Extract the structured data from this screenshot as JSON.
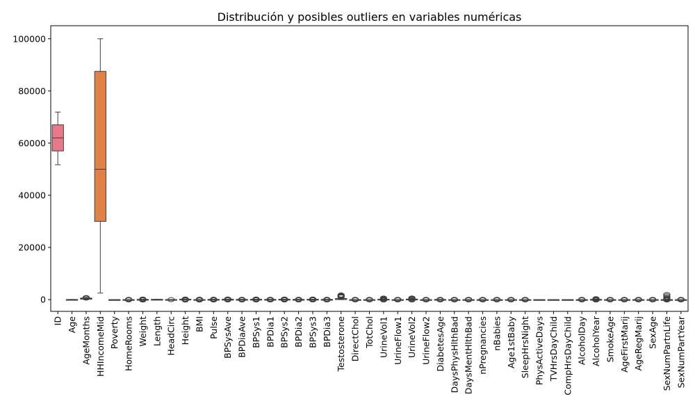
{
  "chart_data": {
    "type": "box",
    "title": "Distribución y posibles outliers en variables numéricas",
    "xlabel": "",
    "ylabel": "",
    "ylim": [
      -4500,
      105000
    ],
    "yticks": [
      0,
      20000,
      40000,
      60000,
      80000,
      100000
    ],
    "ytick_labels": [
      "0",
      "20000",
      "40000",
      "60000",
      "80000",
      "100000"
    ],
    "grid": false,
    "legend": "none",
    "categories": [
      "ID",
      "Age",
      "AgeMonths",
      "HHIncomeMid",
      "Poverty",
      "HomeRooms",
      "Weight",
      "Length",
      "HeadCirc",
      "Height",
      "BMI",
      "Pulse",
      "BPSysAve",
      "BPDiaAve",
      "BPSys1",
      "BPDia1",
      "BPSys2",
      "BPDia2",
      "BPSys3",
      "BPDia3",
      "Testosterone",
      "DirectChol",
      "TotChol",
      "UrineVol1",
      "UrineFlow1",
      "UrineVol2",
      "UrineFlow2",
      "DiabetesAge",
      "DaysPhysHlthBad",
      "DaysMentHlthBad",
      "nPregnancies",
      "nBabies",
      "Age1stBaby",
      "SleepHrsNight",
      "PhysActiveDays",
      "TVHrsDayChild",
      "CompHrsDayChild",
      "AlcoholDay",
      "AlcoholYear",
      "SmokeAge",
      "AgeFirstMarij",
      "AgeRegMarij",
      "SexAge",
      "SexNumPartnLife",
      "SexNumPartYear"
    ],
    "colors": [
      "#e8798a",
      "#e47f6c",
      "#d98847",
      "#df8247",
      "#c8922e",
      "#b39a2e",
      "#9ea231",
      "#87a631",
      "#6fab31",
      "#4caf3d",
      "#37b15c",
      "#38af75",
      "#39ad86",
      "#3aac95",
      "#3babab",
      "#3dacb6",
      "#3eadc1",
      "#3daecb",
      "#3eb1d7",
      "#4ab3e3",
      "#5cb2ea",
      "#7aaaf0",
      "#9aa3f4",
      "#b19bf4",
      "#c494f3",
      "#d58ced",
      "#e289e5",
      "#ec85d8",
      "#f182c9",
      "#f27fbd",
      "#f27bad",
      "#f07aa0",
      "#ee7a94",
      "#ed7988",
      "#ec7880",
      "#ea7878",
      "#e9787a",
      "#e8787e",
      "#e67882",
      "#e57886",
      "#e4788a",
      "#e3788e",
      "#e27892",
      "#e17896",
      "#e0789a"
    ],
    "boxes": [
      {
        "min": 51700,
        "q1": 57000,
        "median": 62000,
        "q3": 67000,
        "max": 71900,
        "outliers": []
      },
      {
        "min": 0,
        "q1": 15,
        "median": 38,
        "q3": 56,
        "max": 80,
        "outliers": []
      },
      {
        "min": 0,
        "q1": 180,
        "median": 400,
        "q3": 600,
        "max": 900,
        "outliers": [
          600,
          700,
          800
        ]
      },
      {
        "min": 2500,
        "q1": 30000,
        "median": 50000,
        "q3": 87500,
        "max": 100000,
        "outliers": []
      },
      {
        "min": 0,
        "q1": 1,
        "median": 2.5,
        "q3": 4,
        "max": 5,
        "outliers": []
      },
      {
        "min": 2,
        "q1": 5,
        "median": 6,
        "q3": 8,
        "max": 12,
        "outliers": [
          -100,
          -50,
          50,
          100
        ]
      },
      {
        "min": 2,
        "q1": 55,
        "median": 70,
        "q3": 88,
        "max": 140,
        "outliers": [
          -150,
          -80,
          80,
          150,
          230
        ]
      },
      {
        "min": 40,
        "q1": 75,
        "median": 90,
        "q3": 100,
        "max": 110,
        "outliers": []
      },
      {
        "min": 30,
        "q1": 35,
        "median": 40,
        "q3": 43,
        "max": 46,
        "outliers": [
          0
        ]
      },
      {
        "min": 80,
        "q1": 155,
        "median": 165,
        "q3": 175,
        "max": 200,
        "outliers": [
          -150,
          -70,
          70,
          150,
          220
        ]
      },
      {
        "min": 12,
        "q1": 22,
        "median": 26,
        "q3": 31,
        "max": 45,
        "outliers": [
          -150,
          -70,
          70,
          150
        ]
      },
      {
        "min": 40,
        "q1": 63,
        "median": 72,
        "q3": 82,
        "max": 110,
        "outliers": [
          -130,
          -60,
          80,
          160
        ]
      },
      {
        "min": 80,
        "q1": 106,
        "median": 116,
        "q3": 127,
        "max": 160,
        "outliers": [
          -120,
          -50,
          70,
          150,
          220
        ]
      },
      {
        "min": 30,
        "q1": 60,
        "median": 68,
        "q3": 76,
        "max": 100,
        "outliers": [
          -120,
          -50,
          60,
          130
        ]
      },
      {
        "min": 80,
        "q1": 106,
        "median": 116,
        "q3": 128,
        "max": 160,
        "outliers": [
          -120,
          -50,
          70,
          150,
          220
        ]
      },
      {
        "min": 30,
        "q1": 60,
        "median": 68,
        "q3": 76,
        "max": 100,
        "outliers": [
          -120,
          -50,
          60,
          130
        ]
      },
      {
        "min": 80,
        "q1": 106,
        "median": 116,
        "q3": 127,
        "max": 160,
        "outliers": [
          -120,
          -50,
          70,
          150,
          230
        ]
      },
      {
        "min": 30,
        "q1": 60,
        "median": 68,
        "q3": 76,
        "max": 100,
        "outliers": [
          -120,
          -50,
          60,
          130
        ]
      },
      {
        "min": 80,
        "q1": 106,
        "median": 116,
        "q3": 127,
        "max": 160,
        "outliers": [
          -120,
          -50,
          70,
          150,
          230
        ]
      },
      {
        "min": 30,
        "q1": 60,
        "median": 68,
        "q3": 76,
        "max": 100,
        "outliers": [
          -120,
          -50,
          60,
          130
        ]
      },
      {
        "min": 0,
        "q1": 20,
        "median": 100,
        "q3": 420,
        "max": 900,
        "outliers": [
          1000,
          1200,
          1400,
          1600,
          1800
        ]
      },
      {
        "min": 0.5,
        "q1": 1.1,
        "median": 1.3,
        "q3": 1.6,
        "max": 2.3,
        "outliers": [
          -100,
          -40,
          40,
          100
        ]
      },
      {
        "min": 2,
        "q1": 4.2,
        "median": 4.8,
        "q3": 5.5,
        "max": 7.5,
        "outliers": [
          -100,
          -40,
          40,
          100
        ]
      },
      {
        "min": 0,
        "q1": 50,
        "median": 95,
        "q3": 160,
        "max": 320,
        "outliers": [
          -130,
          -60,
          200,
          300,
          450,
          600
        ]
      },
      {
        "min": 0,
        "q1": 0.4,
        "median": 0.7,
        "q3": 1.2,
        "max": 2.5,
        "outliers": [
          -100,
          -40,
          40,
          100
        ]
      },
      {
        "min": 0,
        "q1": 60,
        "median": 120,
        "q3": 200,
        "max": 380,
        "outliers": [
          -130,
          -60,
          250,
          350,
          500,
          620
        ]
      },
      {
        "min": 0,
        "q1": 0.5,
        "median": 0.9,
        "q3": 1.5,
        "max": 3,
        "outliers": [
          -100,
          -40,
          40,
          100
        ]
      },
      {
        "min": 10,
        "q1": 40,
        "median": 50,
        "q3": 58,
        "max": 80,
        "outliers": [
          -100,
          -40,
          50,
          100
        ]
      },
      {
        "min": 0,
        "q1": 0,
        "median": 0,
        "q3": 3,
        "max": 7,
        "outliers": [
          -100,
          -40,
          40,
          100
        ]
      },
      {
        "min": 0,
        "q1": 0,
        "median": 0,
        "q3": 4,
        "max": 10,
        "outliers": [
          -100,
          -40,
          40,
          100
        ]
      },
      {
        "min": 1,
        "q1": 2,
        "median": 3,
        "q3": 4,
        "max": 7,
        "outliers": [
          -100,
          -40,
          40,
          100
        ]
      },
      {
        "min": 0,
        "q1": 2,
        "median": 2,
        "q3": 3,
        "max": 5,
        "outliers": [
          -100,
          -40,
          40,
          100
        ]
      },
      {
        "min": 14,
        "q1": 19,
        "median": 22,
        "q3": 26,
        "max": 36,
        "outliers": [
          -100,
          -40,
          40,
          100
        ]
      },
      {
        "min": 4,
        "q1": 6,
        "median": 7,
        "q3": 8,
        "max": 10,
        "outliers": [
          -100,
          -40,
          40,
          100
        ]
      },
      {
        "min": 1,
        "q1": 2,
        "median": 3,
        "q3": 5,
        "max": 7,
        "outliers": []
      },
      {
        "min": 0,
        "q1": 1,
        "median": 2,
        "q3": 3,
        "max": 6,
        "outliers": []
      },
      {
        "min": 0,
        "q1": 0,
        "median": 1,
        "q3": 2,
        "max": 6,
        "outliers": []
      },
      {
        "min": 1,
        "q1": 1,
        "median": 2,
        "q3": 3,
        "max": 5,
        "outliers": [
          -100,
          -40,
          40,
          100
        ]
      },
      {
        "min": 0,
        "q1": 3,
        "median": 24,
        "q3": 104,
        "max": 254,
        "outliers": [
          -130,
          -60,
          120,
          200,
          300,
          364
        ]
      },
      {
        "min": 10,
        "q1": 15,
        "median": 17,
        "q3": 19,
        "max": 25,
        "outliers": [
          -100,
          -40,
          40,
          100
        ]
      },
      {
        "min": 10,
        "q1": 15,
        "median": 16,
        "q3": 18,
        "max": 22,
        "outliers": [
          -100,
          -40,
          40,
          100
        ]
      },
      {
        "min": 10,
        "q1": 15,
        "median": 17,
        "q3": 19,
        "max": 25,
        "outliers": [
          -100,
          -40,
          40,
          100
        ]
      },
      {
        "min": 10,
        "q1": 15,
        "median": 17,
        "q3": 19,
        "max": 25,
        "outliers": [
          -100,
          -40,
          40,
          100
        ]
      },
      {
        "min": 0,
        "q1": 2,
        "median": 5,
        "q3": 12,
        "max": 27,
        "outliers": [
          -130,
          -60,
          100,
          300,
          600,
          1000,
          1500,
          2000
        ]
      },
      {
        "min": 0,
        "q1": 1,
        "median": 1,
        "q3": 2,
        "max": 3,
        "outliers": [
          -100,
          -40,
          40,
          100
        ]
      }
    ]
  }
}
